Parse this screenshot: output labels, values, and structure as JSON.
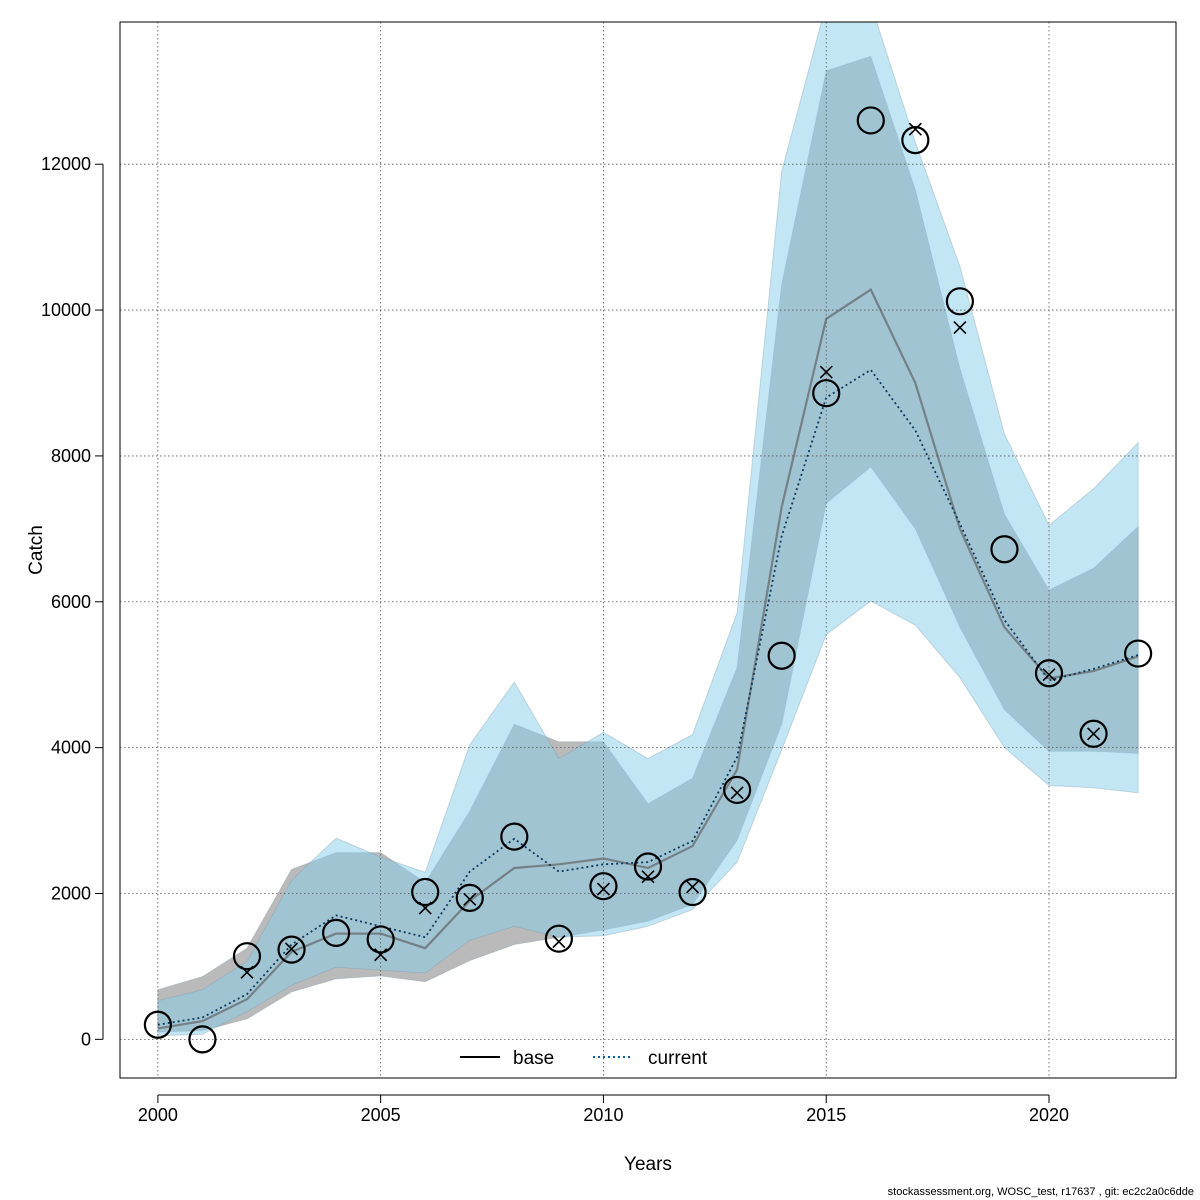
{
  "chart_data": {
    "type": "line",
    "title": "",
    "xlabel": "Years",
    "ylabel": "Catch",
    "xlim": [
      1999.15,
      2022.85
    ],
    "ylim": [
      -530,
      13950
    ],
    "grid": true,
    "x_ticks": [
      2000,
      2005,
      2010,
      2015,
      2020
    ],
    "y_ticks": [
      0,
      2000,
      4000,
      6000,
      8000,
      10000,
      12000
    ],
    "x": [
      2000,
      2001,
      2002,
      2003,
      2004,
      2005,
      2006,
      2007,
      2008,
      2009,
      2010,
      2011,
      2012,
      2013,
      2014,
      2015,
      2016,
      2017,
      2018,
      2019,
      2020,
      2021,
      2022
    ],
    "legend": {
      "position": "bottom",
      "entries": [
        {
          "label": "base",
          "style": "solid",
          "color": "#000000"
        },
        {
          "label": "current",
          "style": "dotted",
          "color": "#0b5ea8"
        }
      ]
    },
    "series": [
      {
        "name": "base",
        "line_style": "solid",
        "line_color": "#555555",
        "band_color": "#999999",
        "values": [
          150,
          250,
          550,
          1200,
          1450,
          1450,
          1250,
          1900,
          2350,
          2400,
          2480,
          2350,
          2650,
          3700,
          7300,
          9880,
          10280,
          9000,
          7000,
          5650,
          4950,
          5050,
          5250
        ],
        "band_low": [
          100,
          120,
          280,
          650,
          830,
          870,
          790,
          1080,
          1300,
          1400,
          1500,
          1620,
          1850,
          2730,
          4320,
          7350,
          7850,
          7000,
          5650,
          4520,
          3950,
          3950,
          3920
        ],
        "band_high": [
          680,
          860,
          1250,
          2330,
          2560,
          2560,
          2150,
          3130,
          4320,
          4080,
          4080,
          3230,
          3580,
          5100,
          10350,
          13280,
          13480,
          11650,
          9200,
          7200,
          6160,
          6460,
          7030
        ]
      },
      {
        "name": "current",
        "line_style": "dotted",
        "line_color": "#0b3a5e",
        "band_color": "#87ceeb",
        "values": [
          200,
          300,
          620,
          1300,
          1700,
          1550,
          1400,
          2300,
          2750,
          2300,
          2400,
          2430,
          2720,
          3870,
          6900,
          8800,
          9180,
          8350,
          7070,
          5750,
          4920,
          5080,
          5270
        ],
        "band_low": [
          50,
          70,
          380,
          740,
          990,
          950,
          910,
          1360,
          1550,
          1400,
          1420,
          1550,
          1780,
          2430,
          3970,
          5550,
          6010,
          5680,
          4960,
          4000,
          3480,
          3450,
          3380
        ],
        "band_high": [
          530,
          680,
          1070,
          2180,
          2760,
          2500,
          2290,
          4040,
          4900,
          3850,
          4210,
          3850,
          4180,
          5850,
          11900,
          14200,
          14200,
          12300,
          10600,
          8300,
          7050,
          7550,
          8180
        ]
      }
    ],
    "observed": [
      {
        "x": 2000,
        "y": 200
      },
      {
        "x": 2001,
        "y": 0
      },
      {
        "x": 2002,
        "y": 1140
      },
      {
        "x": 2003,
        "y": 1230
      },
      {
        "x": 2004,
        "y": 1460
      },
      {
        "x": 2005,
        "y": 1370
      },
      {
        "x": 2006,
        "y": 2020
      },
      {
        "x": 2007,
        "y": 1940
      },
      {
        "x": 2008,
        "y": 2780
      },
      {
        "x": 2009,
        "y": 1380
      },
      {
        "x": 2010,
        "y": 2100
      },
      {
        "x": 2011,
        "y": 2370
      },
      {
        "x": 2012,
        "y": 2020
      },
      {
        "x": 2013,
        "y": 3420
      },
      {
        "x": 2014,
        "y": 5260
      },
      {
        "x": 2015,
        "y": 8860
      },
      {
        "x": 2016,
        "y": 12600
      },
      {
        "x": 2017,
        "y": 12330
      },
      {
        "x": 2018,
        "y": 10120
      },
      {
        "x": 2019,
        "y": 6720
      },
      {
        "x": 2020,
        "y": 5020
      },
      {
        "x": 2021,
        "y": 4190
      },
      {
        "x": 2022,
        "y": 5290
      }
    ],
    "expected": [
      {
        "x": 2002,
        "y": 920
      },
      {
        "x": 2003,
        "y": 1240
      },
      {
        "x": 2005,
        "y": 1160
      },
      {
        "x": 2006,
        "y": 1800
      },
      {
        "x": 2007,
        "y": 1920
      },
      {
        "x": 2009,
        "y": 1340
      },
      {
        "x": 2010,
        "y": 2060
      },
      {
        "x": 2011,
        "y": 2230
      },
      {
        "x": 2012,
        "y": 2090
      },
      {
        "x": 2013,
        "y": 3380
      },
      {
        "x": 2015,
        "y": 9150
      },
      {
        "x": 2017,
        "y": 12480
      },
      {
        "x": 2018,
        "y": 9760
      },
      {
        "x": 2020,
        "y": 5000
      },
      {
        "x": 2021,
        "y": 4190
      }
    ]
  },
  "footer_text": "stockassessment.org, WOSC_test, r17637 , git: ec2c2a0c6dde"
}
